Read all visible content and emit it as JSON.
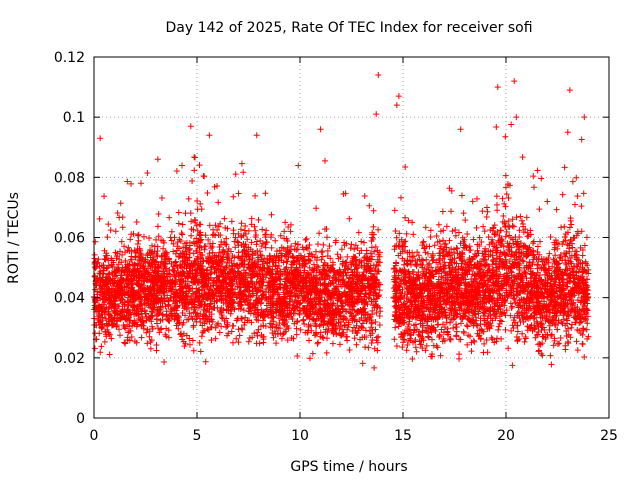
{
  "chart_data": {
    "type": "scatter",
    "title": "Day 142 of 2025, Rate Of TEC Index for receiver sofi",
    "xlabel": "GPS time / hours",
    "ylabel": "ROTI / TECUs",
    "xlim": [
      0,
      25
    ],
    "ylim": [
      0,
      0.12
    ],
    "x_ticks": [
      0,
      5,
      10,
      15,
      20,
      25
    ],
    "x_tick_labels": [
      "0",
      "5",
      "10",
      "15",
      "20",
      "25"
    ],
    "y_ticks": [
      0,
      0.02,
      0.04,
      0.06,
      0.08,
      0.1,
      0.12
    ],
    "y_tick_labels": [
      "0",
      "0.02",
      "0.04",
      "0.06",
      "0.08",
      "0.1",
      "0.12"
    ],
    "grid": true,
    "marker": "+",
    "color": "#ff0000",
    "series": [
      {
        "name": "ROTI",
        "profile": {
          "hours": [
            0.0,
            0.5,
            1.0,
            1.5,
            2.0,
            2.5,
            3.0,
            3.5,
            4.0,
            4.5,
            5.0,
            5.5,
            6.0,
            6.5,
            7.0,
            7.5,
            8.0,
            8.5,
            9.0,
            9.5,
            10.0,
            10.5,
            11.0,
            11.5,
            12.0,
            12.5,
            13.0,
            13.5,
            14.0,
            14.5,
            15.0,
            15.5,
            16.0,
            16.5,
            17.0,
            17.5,
            18.0,
            18.5,
            19.0,
            19.5,
            20.0,
            20.5,
            21.0,
            21.5,
            22.0,
            22.5,
            23.0,
            23.5,
            24.0
          ],
          "center": [
            0.04,
            0.04,
            0.041,
            0.042,
            0.043,
            0.042,
            0.044,
            0.043,
            0.042,
            0.045,
            0.046,
            0.044,
            0.045,
            0.044,
            0.046,
            0.045,
            0.044,
            0.043,
            0.042,
            0.043,
            0.044,
            0.041,
            0.04,
            0.039,
            0.04,
            0.041,
            0.041,
            0.044,
            0.044,
            0.045,
            0.042,
            0.04,
            0.04,
            0.041,
            0.042,
            0.043,
            0.043,
            0.041,
            0.044,
            0.046,
            0.048,
            0.046,
            0.044,
            0.042,
            0.04,
            0.041,
            0.044,
            0.042,
            0.04
          ],
          "spread": [
            0.012,
            0.014,
            0.014,
            0.013,
            0.014,
            0.014,
            0.015,
            0.014,
            0.014,
            0.016,
            0.018,
            0.015,
            0.016,
            0.015,
            0.016,
            0.015,
            0.014,
            0.014,
            0.014,
            0.014,
            0.014,
            0.014,
            0.013,
            0.013,
            0.013,
            0.013,
            0.014,
            0.017,
            0.016,
            0.017,
            0.016,
            0.015,
            0.014,
            0.014,
            0.015,
            0.015,
            0.015,
            0.015,
            0.017,
            0.019,
            0.02,
            0.018,
            0.016,
            0.015,
            0.014,
            0.015,
            0.017,
            0.015,
            0.014
          ]
        },
        "outliers": [
          {
            "x": 0.3,
            "y": 0.093
          },
          {
            "x": 3.1,
            "y": 0.086
          },
          {
            "x": 4.7,
            "y": 0.097
          },
          {
            "x": 5.6,
            "y": 0.094
          },
          {
            "x": 7.9,
            "y": 0.094
          },
          {
            "x": 11.0,
            "y": 0.096
          },
          {
            "x": 13.8,
            "y": 0.114
          },
          {
            "x": 13.7,
            "y": 0.101
          },
          {
            "x": 14.8,
            "y": 0.107
          },
          {
            "x": 14.7,
            "y": 0.104
          },
          {
            "x": 17.8,
            "y": 0.096
          },
          {
            "x": 19.6,
            "y": 0.11
          },
          {
            "x": 20.4,
            "y": 0.112
          },
          {
            "x": 20.5,
            "y": 0.1
          },
          {
            "x": 23.1,
            "y": 0.109
          },
          {
            "x": 23.8,
            "y": 0.1
          },
          {
            "x": 23.0,
            "y": 0.095
          }
        ],
        "gaps": [
          [
            13.9,
            14.55
          ]
        ]
      }
    ]
  }
}
